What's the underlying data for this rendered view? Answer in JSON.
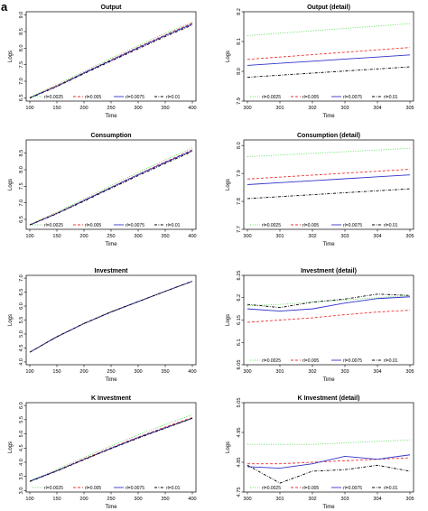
{
  "figure_label": "a",
  "colors": {
    "rl_0_0025": "#55dd55",
    "rl_0_005": "#ee3333",
    "rl_0_0075": "#3333cc",
    "rl_0_01": "#000000"
  },
  "chart_data": [
    {
      "type": "line",
      "title": "Output",
      "xlabel": "Time",
      "ylabel": "Logs",
      "xlim": [
        100,
        400
      ],
      "ylim": [
        6.4,
        9.1
      ],
      "xticks": [
        100,
        150,
        200,
        250,
        300,
        350,
        400
      ],
      "yticks": [
        6.5,
        7.0,
        7.5,
        8.0,
        8.5,
        9.0
      ],
      "x": [
        100,
        150,
        200,
        250,
        300,
        350,
        400
      ],
      "series": [
        {
          "name": "rl=0.0025",
          "color": "#55dd55",
          "dash": "dot",
          "values": [
            6.52,
            6.9,
            7.3,
            7.7,
            8.08,
            8.45,
            8.8
          ]
        },
        {
          "name": "rl=0.005",
          "color": "#ee3333",
          "dash": "dash",
          "values": [
            6.5,
            6.87,
            7.26,
            7.65,
            8.03,
            8.4,
            8.76
          ]
        },
        {
          "name": "rl=0.0075",
          "color": "#3333cc",
          "dash": "solid",
          "values": [
            6.5,
            6.85,
            7.25,
            7.63,
            8.01,
            8.38,
            8.73
          ]
        },
        {
          "name": "rl=0.01",
          "color": "#000000",
          "dash": "dotdash",
          "values": [
            6.49,
            6.84,
            7.23,
            7.61,
            7.98,
            8.35,
            8.7
          ]
        }
      ],
      "legend": "bottom"
    },
    {
      "type": "line",
      "title": "Output (detail)",
      "xlabel": "Time",
      "ylabel": "Logs",
      "xlim": [
        300,
        305
      ],
      "ylim": [
        7.9,
        8.2
      ],
      "xticks": [
        300,
        301,
        302,
        303,
        304,
        305
      ],
      "yticks": [
        7.9,
        8.0,
        8.1,
        8.2
      ],
      "x": [
        300,
        301,
        302,
        303,
        304,
        305
      ],
      "series": [
        {
          "name": "rl=0.0025",
          "color": "#55dd55",
          "dash": "dot",
          "values": [
            8.12,
            8.128,
            8.136,
            8.144,
            8.152,
            8.16
          ]
        },
        {
          "name": "rl=0.005",
          "color": "#ee3333",
          "dash": "dash",
          "values": [
            8.04,
            8.048,
            8.056,
            8.064,
            8.072,
            8.08
          ]
        },
        {
          "name": "rl=0.0075",
          "color": "#3333cc",
          "dash": "solid",
          "values": [
            8.02,
            8.027,
            8.034,
            8.041,
            8.048,
            8.055
          ]
        },
        {
          "name": "rl=0.01",
          "color": "#000000",
          "dash": "dotdash",
          "values": [
            7.98,
            7.987,
            7.994,
            8.001,
            8.008,
            8.015
          ]
        }
      ],
      "legend": "bottom"
    },
    {
      "type": "line",
      "title": "Consumption",
      "xlabel": "Time",
      "ylabel": "Logs",
      "xlim": [
        100,
        400
      ],
      "ylim": [
        6.2,
        8.9
      ],
      "xticks": [
        100,
        150,
        200,
        250,
        300,
        350,
        400
      ],
      "yticks": [
        6.5,
        7.0,
        7.5,
        8.0,
        8.5
      ],
      "x": [
        100,
        150,
        200,
        250,
        300,
        350,
        400
      ],
      "series": [
        {
          "name": "rl=0.0025",
          "color": "#55dd55",
          "dash": "dot",
          "values": [
            6.35,
            6.72,
            7.12,
            7.52,
            7.92,
            8.3,
            8.66
          ]
        },
        {
          "name": "rl=0.005",
          "color": "#ee3333",
          "dash": "dash",
          "values": [
            6.34,
            6.69,
            7.08,
            7.47,
            7.86,
            8.24,
            8.6
          ]
        },
        {
          "name": "rl=0.0075",
          "color": "#3333cc",
          "dash": "solid",
          "values": [
            6.33,
            6.68,
            7.07,
            7.46,
            7.85,
            8.22,
            8.58
          ]
        },
        {
          "name": "rl=0.01",
          "color": "#000000",
          "dash": "dotdash",
          "values": [
            6.33,
            6.67,
            7.05,
            7.44,
            7.82,
            8.19,
            8.55
          ]
        }
      ],
      "legend": "bottom"
    },
    {
      "type": "line",
      "title": "Consumption (detail)",
      "xlabel": "Time",
      "ylabel": "Logs",
      "xlim": [
        300,
        305
      ],
      "ylim": [
        7.7,
        8.02
      ],
      "xticks": [
        300,
        301,
        302,
        303,
        304,
        305
      ],
      "yticks": [
        7.7,
        7.8,
        7.9,
        8.0
      ],
      "x": [
        300,
        301,
        302,
        303,
        304,
        305
      ],
      "series": [
        {
          "name": "rl=0.0025",
          "color": "#55dd55",
          "dash": "dot",
          "values": [
            7.96,
            7.966,
            7.972,
            7.978,
            7.984,
            7.99
          ]
        },
        {
          "name": "rl=0.005",
          "color": "#ee3333",
          "dash": "dash",
          "values": [
            7.88,
            7.887,
            7.894,
            7.901,
            7.908,
            7.915
          ]
        },
        {
          "name": "rl=0.0075",
          "color": "#3333cc",
          "dash": "solid",
          "values": [
            7.86,
            7.867,
            7.874,
            7.881,
            7.888,
            7.895
          ]
        },
        {
          "name": "rl=0.01",
          "color": "#000000",
          "dash": "dotdash",
          "values": [
            7.81,
            7.817,
            7.824,
            7.831,
            7.838,
            7.845
          ]
        }
      ],
      "legend": "bottom"
    },
    {
      "type": "line",
      "title": "Investment",
      "xlabel": "Time",
      "ylabel": "Logs",
      "xlim": [
        100,
        400
      ],
      "ylim": [
        3.9,
        7.1
      ],
      "xticks": [
        100,
        150,
        200,
        250,
        300,
        350,
        400
      ],
      "yticks": [
        4.0,
        4.5,
        5.0,
        5.5,
        6.0,
        6.5,
        7.0
      ],
      "x": [
        100,
        150,
        200,
        250,
        300,
        350,
        400
      ],
      "series": [
        {
          "name": "rl=0.0025",
          "color": "#55dd55",
          "dash": "dot",
          "values": [
            4.35,
            4.9,
            5.37,
            5.78,
            6.15,
            6.52,
            6.88
          ]
        },
        {
          "name": "rl=0.005",
          "color": "#ee3333",
          "dash": "dash",
          "values": [
            4.35,
            4.91,
            5.38,
            5.8,
            6.16,
            6.53,
            6.89
          ]
        },
        {
          "name": "rl=0.0075",
          "color": "#3333cc",
          "dash": "solid",
          "values": [
            4.35,
            4.9,
            5.37,
            5.79,
            6.16,
            6.53,
            6.89
          ]
        },
        {
          "name": "rl=0.01",
          "color": "#000000",
          "dash": "dotdash",
          "values": [
            4.35,
            4.9,
            5.38,
            5.79,
            6.16,
            6.53,
            6.89
          ]
        }
      ],
      "legend": "none"
    },
    {
      "type": "line",
      "title": "Investment (detail)",
      "xlabel": "Time",
      "ylabel": "Logs",
      "xlim": [
        300,
        305
      ],
      "ylim": [
        6.05,
        6.25
      ],
      "xticks": [
        300,
        301,
        302,
        303,
        304,
        305
      ],
      "yticks": [
        6.05,
        6.1,
        6.15,
        6.2,
        6.25
      ],
      "x": [
        300,
        301,
        302,
        303,
        304,
        305
      ],
      "series": [
        {
          "name": "rl=0.0025",
          "color": "#55dd55",
          "dash": "dot",
          "values": [
            6.182,
            6.185,
            6.19,
            6.195,
            6.2,
            6.205
          ]
        },
        {
          "name": "rl=0.005",
          "color": "#ee3333",
          "dash": "dash",
          "values": [
            6.145,
            6.15,
            6.155,
            6.162,
            6.168,
            6.172
          ]
        },
        {
          "name": "rl=0.0075",
          "color": "#3333cc",
          "dash": "solid",
          "values": [
            6.175,
            6.17,
            6.175,
            6.188,
            6.198,
            6.202
          ]
        },
        {
          "name": "rl=0.01",
          "color": "#000000",
          "dash": "dotdash",
          "values": [
            6.185,
            6.178,
            6.19,
            6.197,
            6.208,
            6.205
          ]
        }
      ],
      "legend": "bottom"
    },
    {
      "type": "line",
      "title": "K Investment",
      "xlabel": "Time",
      "ylabel": "Logs",
      "xlim": [
        100,
        400
      ],
      "ylim": [
        2.95,
        6.1
      ],
      "xticks": [
        100,
        150,
        200,
        250,
        300,
        350,
        400
      ],
      "yticks": [
        3.0,
        3.5,
        4.0,
        4.5,
        5.0,
        5.5,
        6.0
      ],
      "x": [
        100,
        150,
        200,
        250,
        300,
        350,
        400
      ],
      "series": [
        {
          "name": "rl=0.0025",
          "color": "#55dd55",
          "dash": "dot",
          "values": [
            3.35,
            3.75,
            4.17,
            4.58,
            4.97,
            5.33,
            5.68
          ]
        },
        {
          "name": "rl=0.005",
          "color": "#ee3333",
          "dash": "dash",
          "values": [
            3.33,
            3.71,
            4.12,
            4.51,
            4.89,
            5.24,
            5.58
          ]
        },
        {
          "name": "rl=0.0075",
          "color": "#3333cc",
          "dash": "solid",
          "values": [
            3.33,
            3.7,
            4.1,
            4.49,
            4.87,
            5.21,
            5.55
          ]
        },
        {
          "name": "rl=0.01",
          "color": "#000000",
          "dash": "dotdash",
          "values": [
            3.32,
            3.69,
            4.09,
            4.48,
            4.85,
            5.2,
            5.55
          ]
        }
      ],
      "legend": "bottom"
    },
    {
      "type": "line",
      "title": "K Investment (detail)",
      "xlabel": "Time",
      "ylabel": "Logs",
      "xlim": [
        300,
        305
      ],
      "ylim": [
        4.75,
        5.05
      ],
      "xticks": [
        300,
        301,
        302,
        303,
        304,
        305
      ],
      "yticks": [
        4.75,
        4.85,
        4.95,
        5.05
      ],
      "x": [
        300,
        301,
        302,
        303,
        304,
        305
      ],
      "series": [
        {
          "name": "rl=0.0025",
          "color": "#55dd55",
          "dash": "dot",
          "values": [
            4.91,
            4.91,
            4.91,
            4.915,
            4.92,
            4.925
          ]
        },
        {
          "name": "rl=0.005",
          "color": "#ee3333",
          "dash": "dash",
          "values": [
            4.845,
            4.845,
            4.85,
            4.855,
            4.86,
            4.865
          ]
        },
        {
          "name": "rl=0.0075",
          "color": "#3333cc",
          "dash": "solid",
          "values": [
            4.835,
            4.83,
            4.845,
            4.87,
            4.86,
            4.875
          ]
        },
        {
          "name": "rl=0.01",
          "color": "#000000",
          "dash": "dotdash",
          "values": [
            4.84,
            4.78,
            4.82,
            4.825,
            4.84,
            4.82
          ]
        }
      ],
      "legend": "bottom"
    }
  ]
}
